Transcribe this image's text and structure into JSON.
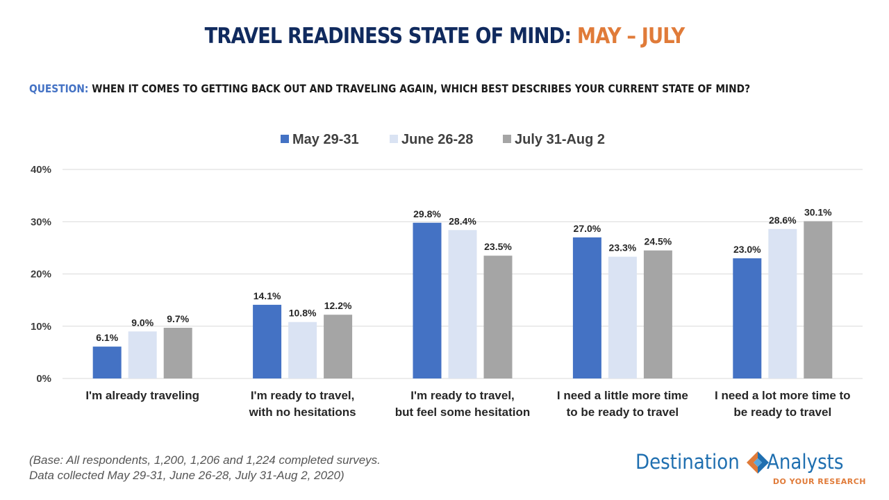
{
  "header": {
    "title_main": "TRAVEL READINESS STATE OF MIND: ",
    "title_accent": "MAY – JULY",
    "question_label": "QUESTION:",
    "question_text": " WHEN IT COMES TO GETTING BACK OUT AND TRAVELING AGAIN, WHICH BEST DESCRIBES YOUR CURRENT STATE OF MIND?"
  },
  "chart_data": {
    "type": "bar",
    "categories": [
      [
        "I'm already traveling"
      ],
      [
        "I'm ready to travel,",
        "with no hesitations"
      ],
      [
        "I'm ready to travel,",
        "but feel some hesitation"
      ],
      [
        "I need a little more time",
        "to be ready to travel"
      ],
      [
        "I need a lot more time to",
        "be ready to travel"
      ]
    ],
    "series": [
      {
        "name": "May 29-31",
        "color": "#4472c4",
        "values": [
          6.1,
          14.1,
          29.8,
          27.0,
          23.0
        ]
      },
      {
        "name": "June 26-28",
        "color": "#dae3f3",
        "values": [
          9.0,
          10.8,
          28.4,
          23.3,
          28.6
        ]
      },
      {
        "name": "July 31-Aug 2",
        "color": "#a5a5a5",
        "values": [
          9.7,
          12.2,
          23.5,
          24.5,
          30.1
        ]
      }
    ],
    "ylim": [
      0,
      40
    ],
    "yticks": [
      0,
      10,
      20,
      30,
      40
    ],
    "ytick_labels": [
      "0%",
      "10%",
      "20%",
      "30%",
      "40%"
    ],
    "value_suffix": "%",
    "grid": true,
    "legend_position": "top-center"
  },
  "footnote": {
    "line1": "(Base: All respondents, 1,200, 1,206 and 1,224 completed surveys.",
    "line2": "Data collected  May 29-31, June 26-28, July 31-Aug 2, 2020)"
  },
  "logo": {
    "word_left": "Destination",
    "word_right": "Analysts",
    "tagline": "DO YOUR RESEARCH",
    "colors": {
      "blue": "#1f6fb0",
      "orange": "#e07b39",
      "light_blue": "#5aa7dd"
    }
  }
}
